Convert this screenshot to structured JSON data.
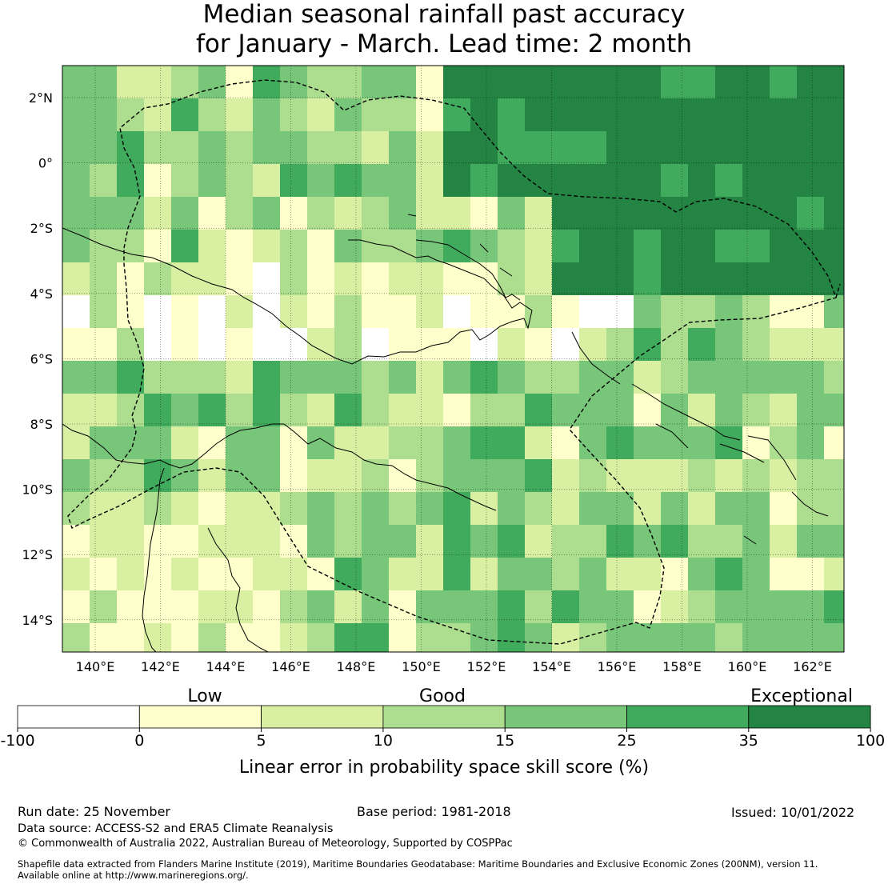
{
  "title": {
    "line1": "Median seasonal rainfall past accuracy",
    "line2": "for January - March. Lead time: 2 month"
  },
  "map": {
    "lat_labels": [
      "2°N",
      "0°",
      "2°S",
      "4°S",
      "6°S",
      "8°S",
      "10°S",
      "12°S",
      "14°S"
    ],
    "lon_labels": [
      "140°E",
      "142°E",
      "144°E",
      "146°E",
      "148°E",
      "150°E",
      "152°E",
      "154°E",
      "156°E",
      "158°E",
      "160°E",
      "162°E"
    ]
  },
  "legend": {
    "category_labels": [
      "Low",
      "Good",
      "Exceptional"
    ],
    "tick_labels": [
      "-100",
      "0",
      "5",
      "10",
      "15",
      "25",
      "35",
      "100"
    ],
    "colors": [
      "#ffffff",
      "#ffffcc",
      "#d9f0a3",
      "#addd8e",
      "#78c679",
      "#41ab5d",
      "#238443"
    ],
    "axis_label": "Linear error in probability space skill score (%)"
  },
  "footer": {
    "run_date": "Run date: 25 November",
    "base_period": "Base period: 1981-2018",
    "issued": "Issued: 10/01/2022",
    "data_source": "Data source: ACCESS-S2 and ERA5 Climate Reanalysis",
    "copyright": "© Commonwealth of Australia 2022, Australian Bureau of Meteorology, Supported by COSPPac",
    "shapefile_line1": "Shapefile data extracted from Flanders Marine Institute (2019), Maritime Boundaries Geodatabase: Maritime Boundaries and Exclusive Economic Zones (200NM), version 11.",
    "shapefile_line2": "Available online at http://www.marineregions.org/."
  }
}
